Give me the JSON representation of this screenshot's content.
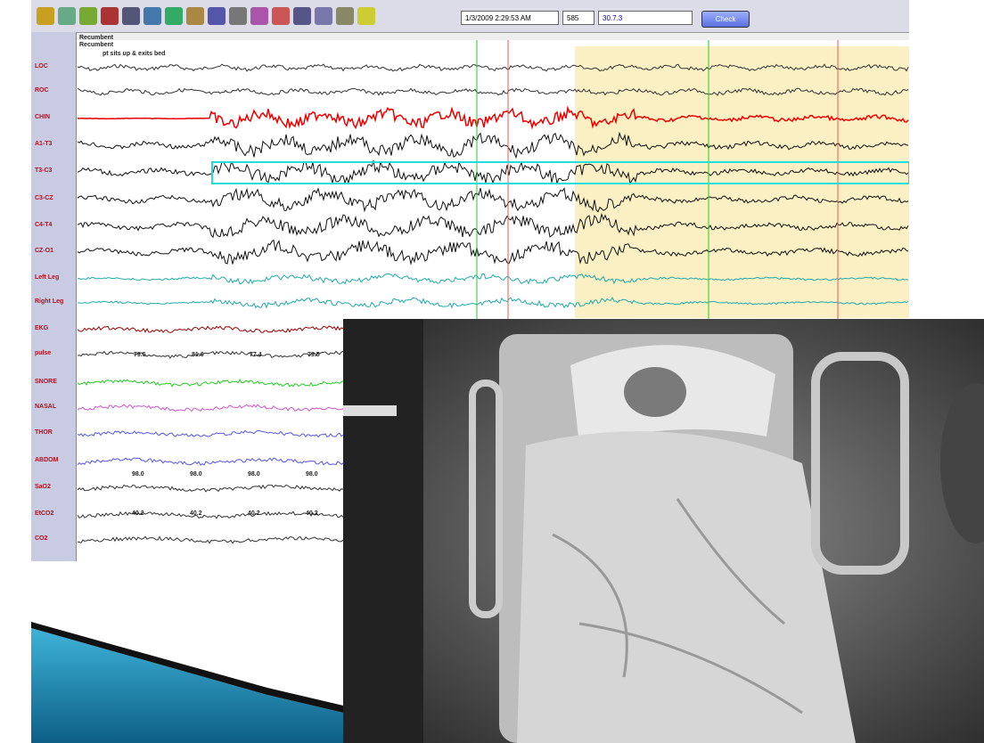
{
  "toolbar": {
    "datetime": "1/3/2009 2:29:53 AM",
    "epoch": "585",
    "scale": "30.7.3",
    "button": "Check"
  },
  "headers": [
    "Recumbent",
    "Recumbent"
  ],
  "annotation": "pt sits up & exits bed",
  "channels": [
    "LOC",
    "ROC",
    "CHIN",
    "A1-T3",
    "T3-C3",
    "C3-CZ",
    "C4-T4",
    "CZ-O1",
    "Left Leg",
    "Right Leg",
    "EKG",
    "pulse",
    "SNORE",
    "NASAL",
    "THOR",
    "ABDOM",
    "SaO2",
    "EtCO2",
    "CO2"
  ],
  "pulse_readings": [
    "79.5",
    "81.6",
    "77.4",
    "79.5"
  ],
  "sao2_readings": [
    "98.0",
    "98.0",
    "98.0",
    "98.0"
  ],
  "etco2_readings": [
    "40.2",
    "40.2",
    "40.2",
    "40.2"
  ]
}
